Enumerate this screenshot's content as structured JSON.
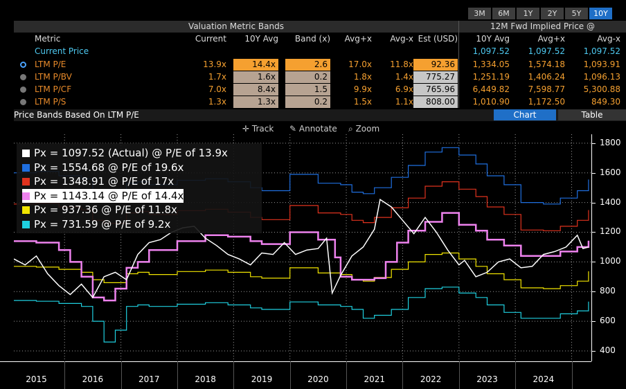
{
  "range_tabs": [
    {
      "label": "3M",
      "active": false
    },
    {
      "label": "6M",
      "active": false
    },
    {
      "label": "1Y",
      "active": false
    },
    {
      "label": "2Y",
      "active": false
    },
    {
      "label": "5Y",
      "active": false
    },
    {
      "label": "10Y",
      "active": true
    }
  ],
  "table": {
    "band_header": "Valuation Metric Bands",
    "implied_header": "12M Fwd Implied Price @",
    "columns": [
      "Metric",
      "Current",
      "10Y Avg",
      "Band (x)",
      "Avg+x",
      "Avg-x",
      "Est (USD)",
      "10Y Avg",
      "Avg+x",
      "Avg-x"
    ],
    "current_price": {
      "label": "Current Price",
      "v1": "1,097.52",
      "v2": "1,097.52",
      "v3": "1,097.52"
    },
    "rows": [
      {
        "metric": "LTM P/E",
        "selected": true,
        "current": "13.9x",
        "avg": "14.4x",
        "band": "2.6",
        "avg_plus": "17.0x",
        "avg_minus": "11.8x",
        "est": "92.36",
        "p_avg": "1,334.05",
        "p_plus": "1,574.18",
        "p_minus": "1,093.91"
      },
      {
        "metric": "LTM P/BV",
        "selected": false,
        "current": "1.7x",
        "avg": "1.6x",
        "band": "0.2",
        "avg_plus": "1.8x",
        "avg_minus": "1.4x",
        "est": "775.27",
        "p_avg": "1,251.19",
        "p_plus": "1,406.24",
        "p_minus": "1,096.13"
      },
      {
        "metric": "LTM P/CF",
        "selected": false,
        "current": "7.0x",
        "avg": "8.4x",
        "band": "1.5",
        "avg_plus": "9.9x",
        "avg_minus": "6.9x",
        "est": "765.96",
        "p_avg": "6,449.82",
        "p_plus": "7,598.77",
        "p_minus": "5,300.88"
      },
      {
        "metric": "LTM P/S",
        "selected": false,
        "current": "1.3x",
        "avg": "1.3x",
        "band": "0.2",
        "avg_plus": "1.5x",
        "avg_minus": "1.1x",
        "est": "808.00",
        "p_avg": "1,010.90",
        "p_plus": "1,172.50",
        "p_minus": "849.30"
      }
    ]
  },
  "section": {
    "title": "Price Bands Based On LTM P/E",
    "chart_tab": "Chart",
    "table_tab": "Table"
  },
  "toolbar": {
    "track": "Track",
    "annotate": "Annotate",
    "zoom": "Zoom"
  },
  "legend": [
    {
      "text": "Px = 1097.52 (Actual) @ P/E of 13.9x",
      "color": "#ffffff"
    },
    {
      "text": "Px = 1554.68 @ P/E of 19.6x",
      "color": "#1f6fe0"
    },
    {
      "text": "Px = 1348.91 @ P/E of 17x",
      "color": "#e0321e"
    },
    {
      "text": "Px = 1143.14 @ P/E of 14.4x",
      "color": "#ee82ee"
    },
    {
      "text": "Px = 937.36 @ P/E of 11.8x",
      "color": "#f2e500"
    },
    {
      "text": "Px = 731.59 @ P/E of 9.2x",
      "color": "#1fd0e0"
    }
  ],
  "chart_data": {
    "type": "line",
    "ylim": [
      330,
      1860
    ],
    "yticks": [
      "400",
      "600",
      "800",
      "1000",
      "1200",
      "1400",
      "1600",
      "1800"
    ],
    "ytick_values": [
      400,
      600,
      800,
      1000,
      1200,
      1400,
      1600,
      1800
    ],
    "xlim": [
      2014.6,
      2024.85
    ],
    "xlabels": [
      "2015",
      "2016",
      "2017",
      "2018",
      "2019",
      "2020",
      "2021",
      "2022",
      "2023",
      "2024"
    ],
    "grid": true,
    "series": [
      {
        "name": "Actual",
        "color": "#ffffff",
        "width": 1.5,
        "x": [
          2014.6,
          2014.8,
          2015.0,
          2015.2,
          2015.4,
          2015.6,
          2015.8,
          2016.0,
          2016.2,
          2016.4,
          2016.6,
          2016.8,
          2017.0,
          2017.2,
          2017.4,
          2017.6,
          2017.8,
          2018.0,
          2018.2,
          2018.4,
          2018.6,
          2018.8,
          2019.0,
          2019.2,
          2019.4,
          2019.6,
          2019.8,
          2020.0,
          2020.15,
          2020.25,
          2020.4,
          2020.6,
          2020.8,
          2021.0,
          2021.1,
          2021.3,
          2021.5,
          2021.7,
          2021.9,
          2022.1,
          2022.3,
          2022.5,
          2022.6,
          2022.8,
          2023.0,
          2023.2,
          2023.4,
          2023.6,
          2023.8,
          2024.0,
          2024.2,
          2024.4,
          2024.6,
          2024.7,
          2024.8
        ],
        "y": [
          1020,
          980,
          1040,
          920,
          840,
          780,
          850,
          760,
          900,
          930,
          880,
          1050,
          1130,
          1150,
          1200,
          1230,
          1240,
          1160,
          1110,
          1050,
          1020,
          980,
          1060,
          1050,
          1130,
          1050,
          1080,
          1090,
          1160,
          790,
          910,
          1040,
          1100,
          1220,
          1420,
          1370,
          1280,
          1190,
          1300,
          1200,
          1080,
          980,
          1010,
          900,
          930,
          1000,
          1020,
          960,
          970,
          1050,
          1070,
          1100,
          1180,
          1090,
          1100
        ]
      },
      {
        "name": "P/E 19.6x",
        "color": "#1f6fe0",
        "width": 1.2,
        "x": [
          2014.6,
          2015.0,
          2015.4,
          2015.8,
          2016.0,
          2016.2,
          2016.4,
          2016.6,
          2016.8,
          2017.0,
          2017.5,
          2018.0,
          2018.4,
          2018.8,
          2019.0,
          2019.5,
          2020.0,
          2020.4,
          2020.6,
          2020.8,
          2021.0,
          2021.3,
          2021.6,
          2021.9,
          2022.2,
          2022.5,
          2022.8,
          2023.0,
          2023.3,
          2023.6,
          2024.0,
          2024.3,
          2024.6,
          2024.8
        ],
        "y": [
          1600,
          1610,
          1580,
          1560,
          1470,
          1450,
          1450,
          1530,
          1540,
          1520,
          1550,
          1560,
          1540,
          1500,
          1480,
          1590,
          1530,
          1520,
          1470,
          1460,
          1500,
          1570,
          1650,
          1740,
          1770,
          1720,
          1660,
          1580,
          1520,
          1400,
          1390,
          1430,
          1480,
          1555
        ]
      },
      {
        "name": "P/E 17x",
        "color": "#e0321e",
        "width": 1.2,
        "x": [
          2014.6,
          2015.0,
          2015.4,
          2015.8,
          2016.0,
          2016.2,
          2016.4,
          2016.6,
          2016.8,
          2017.0,
          2017.5,
          2018.0,
          2018.4,
          2018.8,
          2019.0,
          2019.5,
          2020.0,
          2020.4,
          2020.6,
          2020.8,
          2021.0,
          2021.3,
          2021.6,
          2021.9,
          2022.2,
          2022.5,
          2022.8,
          2023.0,
          2023.3,
          2023.6,
          2024.0,
          2024.3,
          2024.6,
          2024.8
        ],
        "y": [
          1390,
          1395,
          1370,
          1350,
          1280,
          1260,
          1260,
          1330,
          1340,
          1320,
          1345,
          1355,
          1335,
          1300,
          1285,
          1380,
          1330,
          1320,
          1280,
          1265,
          1300,
          1365,
          1430,
          1510,
          1540,
          1490,
          1440,
          1370,
          1320,
          1215,
          1210,
          1240,
          1280,
          1349
        ]
      },
      {
        "name": "P/E 14.4x",
        "color": "#ee82ee",
        "width": 2.5,
        "x": [
          2014.6,
          2015.0,
          2015.4,
          2015.6,
          2015.8,
          2016.0,
          2016.2,
          2016.4,
          2016.6,
          2016.8,
          2017.0,
          2017.5,
          2018.0,
          2018.4,
          2018.8,
          2019.0,
          2019.5,
          2020.0,
          2020.3,
          2020.4,
          2020.6,
          2020.8,
          2021.0,
          2021.2,
          2021.4,
          2021.6,
          2021.9,
          2022.2,
          2022.5,
          2022.8,
          2023.0,
          2023.3,
          2023.6,
          2024.0,
          2024.3,
          2024.6,
          2024.8
        ],
        "y": [
          1140,
          1130,
          1080,
          1000,
          900,
          760,
          740,
          820,
          960,
          1000,
          1080,
          1140,
          1180,
          1170,
          1140,
          1120,
          1200,
          1150,
          1030,
          900,
          880,
          880,
          890,
          1000,
          1130,
          1210,
          1270,
          1330,
          1250,
          1210,
          1150,
          1110,
          1040,
          1040,
          1070,
          1100,
          1143
        ]
      },
      {
        "name": "P/E 11.8x",
        "color": "#f2e500",
        "width": 1.2,
        "x": [
          2014.6,
          2015.0,
          2015.4,
          2015.8,
          2016.0,
          2016.2,
          2016.4,
          2016.6,
          2016.8,
          2017.0,
          2017.5,
          2018.0,
          2018.4,
          2018.8,
          2019.0,
          2019.5,
          2020.0,
          2020.4,
          2020.6,
          2020.8,
          2021.0,
          2021.3,
          2021.6,
          2021.9,
          2022.2,
          2022.5,
          2022.8,
          2023.0,
          2023.3,
          2023.6,
          2024.0,
          2024.3,
          2024.6,
          2024.8
        ],
        "y": [
          970,
          965,
          950,
          930,
          880,
          860,
          860,
          920,
          930,
          915,
          935,
          945,
          930,
          900,
          890,
          960,
          925,
          915,
          880,
          870,
          895,
          950,
          1000,
          1050,
          1060,
          1020,
          970,
          920,
          880,
          825,
          820,
          840,
          870,
          937
        ]
      },
      {
        "name": "P/E 9.2x",
        "color": "#1fd0e0",
        "width": 1.2,
        "x": [
          2014.6,
          2015.0,
          2015.4,
          2015.8,
          2016.0,
          2016.2,
          2016.4,
          2016.6,
          2016.8,
          2017.0,
          2017.5,
          2018.0,
          2018.4,
          2018.8,
          2019.0,
          2019.5,
          2020.0,
          2020.4,
          2020.6,
          2020.8,
          2021.0,
          2021.3,
          2021.6,
          2021.9,
          2022.2,
          2022.5,
          2022.8,
          2023.0,
          2023.3,
          2023.6,
          2024.0,
          2024.3,
          2024.6,
          2024.8
        ],
        "y": [
          740,
          735,
          720,
          700,
          600,
          460,
          540,
          700,
          710,
          700,
          715,
          725,
          710,
          690,
          680,
          730,
          710,
          700,
          680,
          620,
          640,
          680,
          760,
          820,
          830,
          790,
          760,
          710,
          660,
          620,
          620,
          650,
          670,
          732
        ]
      }
    ]
  }
}
